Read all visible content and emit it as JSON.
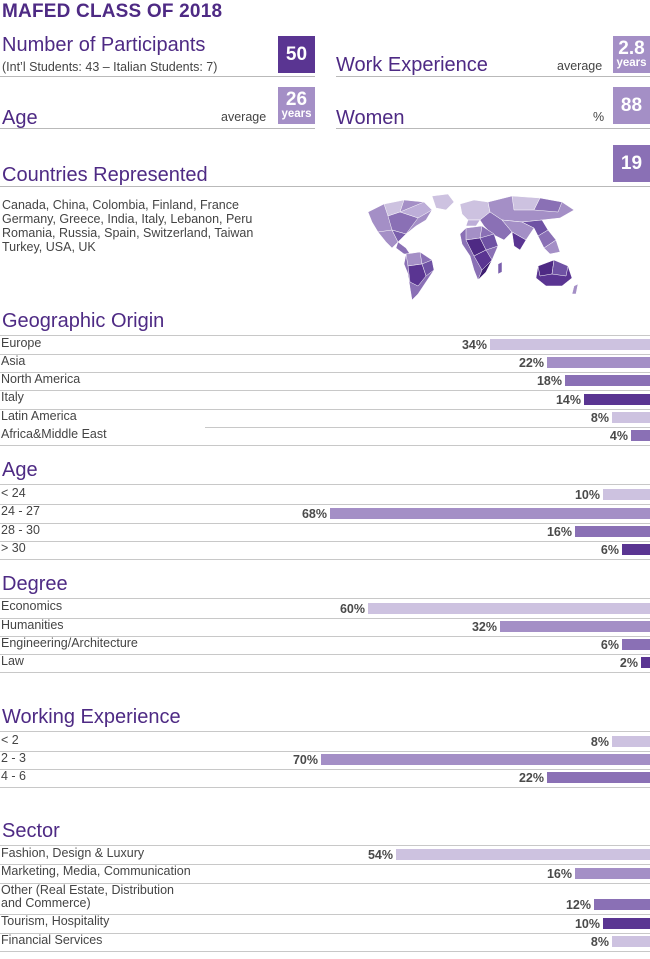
{
  "title": "MAFED CLASS OF 2018",
  "stats": {
    "participants": {
      "label": "Number of Participants",
      "sub": "(Int’l Students: 43  – Italian Students: 7)",
      "value": "50",
      "color": "#5a3592"
    },
    "work_experience": {
      "label": "Work Experience",
      "qualifier": "average",
      "value": "2.8",
      "unit": "years",
      "color": "#a48fc6"
    },
    "age": {
      "label": "Age",
      "qualifier": "average",
      "value": "26",
      "unit": "years",
      "color": "#a48fc6"
    },
    "women": {
      "label": "Women",
      "qualifier": "%",
      "value": "88",
      "color": "#a48fc6"
    },
    "countries": {
      "label": "Countries Represented",
      "value": "19",
      "color": "#8a70b5",
      "lines": [
        "Canada, China, Colombia, Finland, France",
        "Germany, Greece, India, Italy, Lebanon, Peru",
        "Romania, Russia, Spain, Switzerland, Taiwan",
        "Turkey, USA, UK"
      ]
    }
  },
  "map_icon": "world-map-icon",
  "chart_data": [
    {
      "type": "bar",
      "title": "Geographic Origin",
      "categories": [
        "Europe",
        "Asia",
        "North America",
        "Italy",
        "Latin America",
        "Africa&Middle East"
      ],
      "values": [
        34,
        22,
        18,
        14,
        8,
        4
      ],
      "labels": [
        "34%",
        "22%",
        "18%",
        "14%",
        "8%",
        "4%"
      ],
      "colors": [
        "#cdc2e0",
        "#a48fc6",
        "#8a70b5",
        "#5a3592",
        "#cdc2e0",
        "#8a70b5"
      ]
    },
    {
      "type": "bar",
      "title": "Age",
      "categories": [
        "< 24",
        "24 - 27",
        "28 - 30",
        "> 30"
      ],
      "values": [
        10,
        68,
        16,
        6
      ],
      "labels": [
        "10%",
        "68%",
        "16%",
        "6%"
      ],
      "colors": [
        "#cdc2e0",
        "#a48fc6",
        "#8a70b5",
        "#5a3592"
      ]
    },
    {
      "type": "bar",
      "title": "Degree",
      "categories": [
        "Economics",
        "Humanities",
        "Engineering/Architecture",
        "Law"
      ],
      "values": [
        60,
        32,
        6,
        2
      ],
      "labels": [
        "60%",
        "32%",
        "6%",
        "2%"
      ],
      "colors": [
        "#cdc2e0",
        "#a48fc6",
        "#8a70b5",
        "#5a3592"
      ]
    },
    {
      "type": "bar",
      "title": "Working Experience",
      "categories": [
        "< 2",
        "2 - 3",
        "4 - 6"
      ],
      "values": [
        8,
        70,
        22
      ],
      "labels": [
        "8%",
        "70%",
        "22%"
      ],
      "colors": [
        "#cdc2e0",
        "#a48fc6",
        "#8a70b5"
      ]
    },
    {
      "type": "bar",
      "title": "Sector",
      "categories": [
        "Fashion, Design & Luxury",
        "Marketing, Media, Communication",
        "Other (Real Estate, Distribution\nand Commerce)",
        "Tourism, Hospitality",
        "Financial Services"
      ],
      "values": [
        54,
        16,
        12,
        10,
        8
      ],
      "labels": [
        "54%",
        "16%",
        "12%",
        "10%",
        "8%"
      ],
      "colors": [
        "#cdc2e0",
        "#a48fc6",
        "#8a70b5",
        "#5a3592",
        "#cdc2e0"
      ]
    }
  ]
}
